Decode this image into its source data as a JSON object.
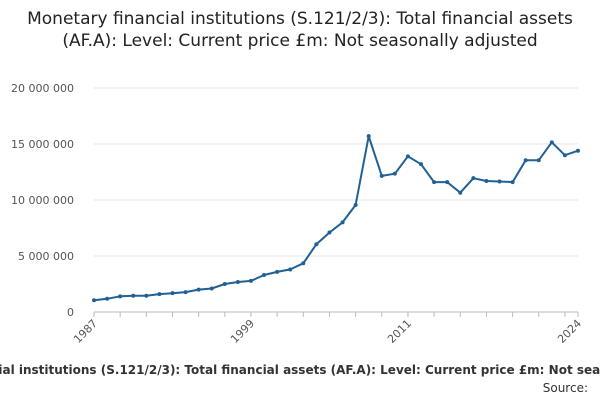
{
  "chart_data": {
    "type": "line",
    "title": "Monetary financial institutions (S.121/2/3): Total financial assets (AF.A): Level: Current price £m: Not seasonally adjusted",
    "xlabel": "",
    "ylabel": "",
    "ylim": [
      0,
      20000000
    ],
    "yticks": [
      0,
      5000000,
      10000000,
      15000000,
      20000000
    ],
    "ytick_labels": [
      "0",
      "5 000 000",
      "10 000 000",
      "15 000 000",
      "20 000 000"
    ],
    "xlim": [
      1987,
      2024
    ],
    "xticks": [
      1987,
      1999,
      2011,
      2024
    ],
    "grid": true,
    "legend_position": "bottom",
    "color": "#206095",
    "series": [
      {
        "name": "Monetary financial institutions (S.121/2/3): Total financial assets (AF.A): Level: Current price £m: Not seasonally adjusted",
        "x": [
          1987,
          1988,
          1989,
          1990,
          1991,
          1992,
          1993,
          1994,
          1995,
          1996,
          1997,
          1998,
          1999,
          2000,
          2001,
          2002,
          2003,
          2004,
          2005,
          2006,
          2007,
          2008,
          2009,
          2010,
          2011,
          2012,
          2013,
          2014,
          2015,
          2016,
          2017,
          2018,
          2019,
          2020,
          2021,
          2022,
          2023,
          2024
        ],
        "values": [
          1050000,
          1180000,
          1400000,
          1450000,
          1450000,
          1600000,
          1680000,
          1780000,
          2000000,
          2100000,
          2500000,
          2680000,
          2780000,
          3300000,
          3580000,
          3800000,
          4350000,
          6050000,
          7100000,
          8000000,
          9550000,
          15700000,
          12150000,
          12350000,
          13900000,
          13200000,
          11600000,
          11600000,
          10650000,
          11950000,
          11700000,
          11650000,
          11600000,
          13550000,
          13550000,
          15150000,
          14000000,
          14400000
        ]
      }
    ]
  },
  "source_label": "Source:"
}
